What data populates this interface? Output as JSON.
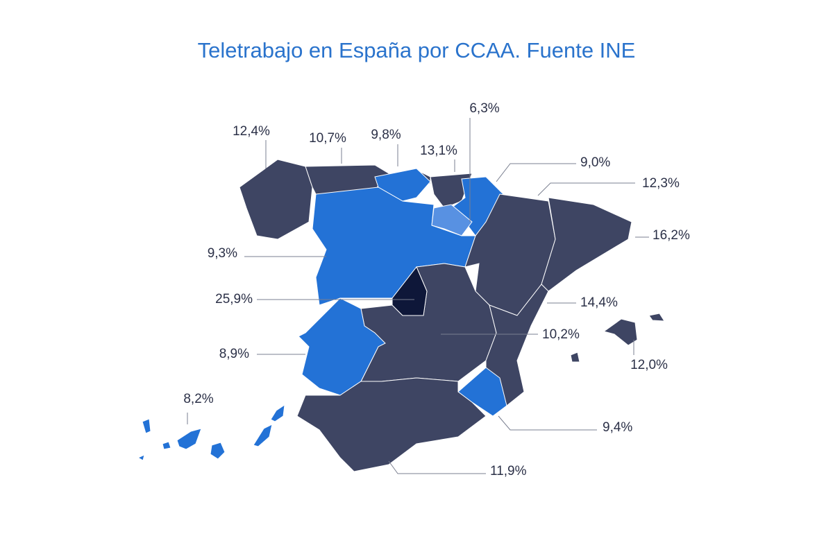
{
  "title": "Teletrabajo en España por CCAA. Fuente INE",
  "labels": [
    "12,4%",
    "10,7%",
    "9,8%",
    "13,1%",
    "6,3%",
    "9,0%",
    "12,3%",
    "16,2%",
    "9,3%",
    "25,9%",
    "14,4%",
    "10,2%",
    "8,9%",
    "12,0%",
    "8,2%",
    "9,4%",
    "11,9%"
  ]
}
